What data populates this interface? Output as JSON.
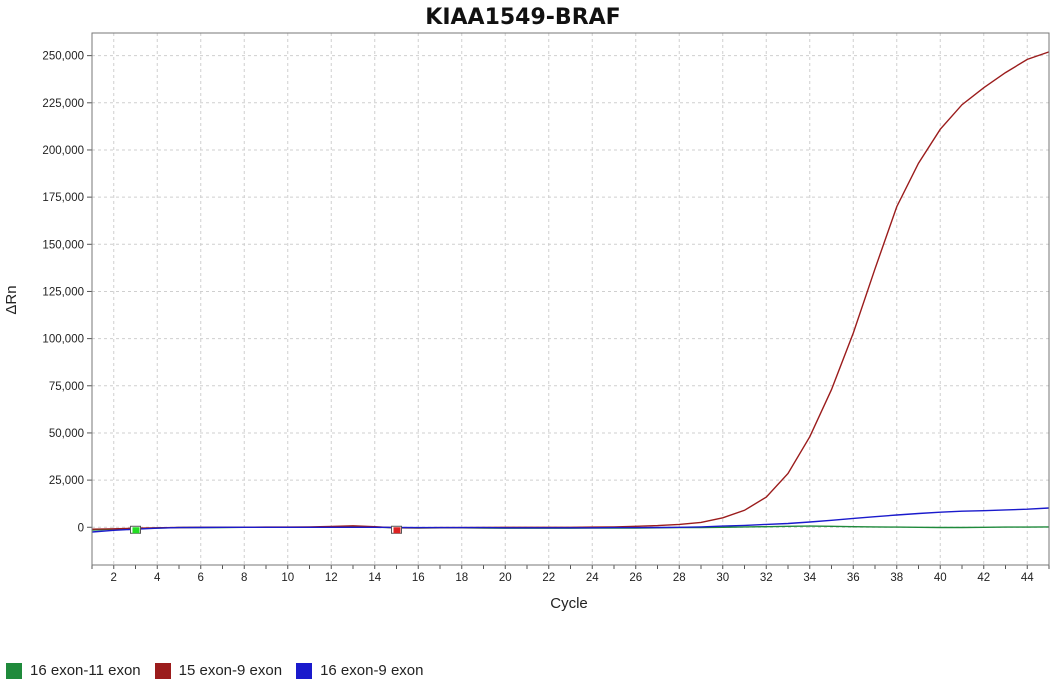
{
  "chart_data": {
    "type": "line",
    "title": "KIAA1549-BRAF",
    "xlabel": "Cycle",
    "ylabel": "ΔRn",
    "xlim": [
      1,
      45
    ],
    "ylim": [
      -20000,
      262000
    ],
    "xticks": [
      2,
      4,
      6,
      8,
      10,
      12,
      14,
      16,
      18,
      20,
      22,
      24,
      26,
      28,
      30,
      32,
      34,
      36,
      38,
      40,
      42,
      44
    ],
    "yticks": [
      0,
      25000,
      50000,
      75000,
      100000,
      125000,
      150000,
      175000,
      200000,
      225000,
      250000
    ],
    "ytick_labels": [
      "0",
      "25,000",
      "50,000",
      "75,000",
      "100,000",
      "125,000",
      "150,000",
      "175,000",
      "200,000",
      "225,000",
      "250,000"
    ],
    "grid": true,
    "legend_position": "bottom-left",
    "series": [
      {
        "name": "16 exon-11 exon",
        "color": "#1f8a3b",
        "x": [
          1,
          2,
          3,
          4,
          5,
          6,
          7,
          8,
          9,
          10,
          11,
          12,
          13,
          14,
          15,
          16,
          17,
          18,
          19,
          20,
          21,
          22,
          23,
          24,
          25,
          26,
          27,
          28,
          29,
          30,
          31,
          32,
          33,
          34,
          35,
          36,
          37,
          38,
          39,
          40,
          41,
          42,
          43,
          44,
          45
        ],
        "y": [
          -1500,
          -1000,
          -700,
          -400,
          -200,
          -100,
          -100,
          0,
          0,
          0,
          0,
          200,
          300,
          100,
          -300,
          -400,
          -300,
          -300,
          -400,
          -500,
          -500,
          -500,
          -500,
          -400,
          -400,
          -400,
          -300,
          -200,
          -100,
          0,
          200,
          300,
          500,
          600,
          500,
          300,
          200,
          100,
          0,
          -100,
          -100,
          0,
          100,
          100,
          200
        ]
      },
      {
        "name": "15 exon-9 exon",
        "color": "#9b1c1c",
        "x": [
          1,
          2,
          3,
          4,
          5,
          6,
          7,
          8,
          9,
          10,
          11,
          12,
          13,
          14,
          15,
          16,
          17,
          18,
          19,
          20,
          21,
          22,
          23,
          24,
          25,
          26,
          27,
          28,
          29,
          30,
          31,
          32,
          33,
          34,
          35,
          36,
          37,
          38,
          39,
          40,
          41,
          42,
          43,
          44,
          45
        ],
        "y": [
          -1000,
          -800,
          -500,
          -300,
          -100,
          0,
          0,
          0,
          100,
          100,
          200,
          400,
          800,
          300,
          -300,
          -300,
          -200,
          -200,
          -100,
          0,
          0,
          0,
          0,
          100,
          200,
          500,
          900,
          1500,
          2600,
          5000,
          9000,
          16000,
          28500,
          48000,
          73000,
          103000,
          137000,
          170000,
          193000,
          211000,
          224000,
          233000,
          241000,
          248000,
          252000
        ]
      },
      {
        "name": "16 exon-9 exon",
        "color": "#1a1acc",
        "x": [
          1,
          2,
          3,
          4,
          5,
          6,
          7,
          8,
          9,
          10,
          11,
          12,
          13,
          14,
          15,
          16,
          17,
          18,
          19,
          20,
          21,
          22,
          23,
          24,
          25,
          26,
          27,
          28,
          29,
          30,
          31,
          32,
          33,
          34,
          35,
          36,
          37,
          38,
          39,
          40,
          41,
          42,
          43,
          44,
          45
        ],
        "y": [
          -2500,
          -1600,
          -1000,
          -500,
          -200,
          -100,
          0,
          0,
          0,
          0,
          0,
          0,
          0,
          0,
          -100,
          -200,
          -200,
          -200,
          -200,
          -300,
          -300,
          -300,
          -300,
          -300,
          -200,
          -200,
          -100,
          0,
          200,
          600,
          1000,
          1500,
          2000,
          2800,
          3700,
          4700,
          5600,
          6500,
          7300,
          8000,
          8500,
          8800,
          9200,
          9600,
          10200
        ]
      }
    ],
    "threshold_markers": [
      {
        "x": 3,
        "color": "#22dd22"
      },
      {
        "x": 15,
        "color": "#dd2222"
      }
    ]
  }
}
